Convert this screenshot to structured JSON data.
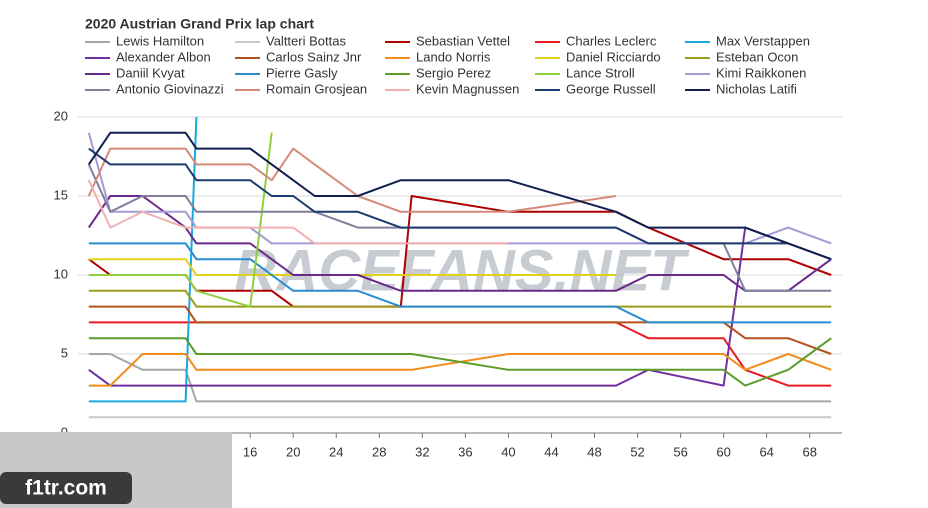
{
  "chart_data": {
    "type": "line",
    "title": "2020 Austrian Grand Prix lap chart",
    "x": [
      1,
      3,
      6,
      10,
      11,
      16,
      18,
      20,
      22,
      26,
      30,
      31,
      40,
      50,
      53,
      60,
      62,
      66,
      70
    ],
    "xlim": [
      0,
      71
    ],
    "xticks": [
      16,
      20,
      24,
      28,
      32,
      36,
      40,
      44,
      48,
      52,
      56,
      60,
      64,
      68
    ],
    "ylim": [
      0,
      20
    ],
    "yticks": [
      0,
      5,
      10,
      15,
      20
    ],
    "grid": true,
    "annotations": [
      "RACEFANS.NET",
      "f1tr.com"
    ],
    "series": [
      {
        "name": "Lewis Hamilton",
        "color": "#a6a6a6",
        "values": [
          5,
          5,
          4,
          4,
          2,
          2,
          2,
          2,
          2,
          2,
          2,
          2,
          2,
          2,
          2,
          2,
          2,
          2,
          2
        ]
      },
      {
        "name": "Valtteri Bottas",
        "color": "#c8c8c8",
        "values": [
          1,
          1,
          1,
          1,
          1,
          1,
          1,
          1,
          1,
          1,
          1,
          1,
          1,
          1,
          1,
          1,
          1,
          1,
          1
        ]
      },
      {
        "name": "Sebastian Vettel",
        "color": "#b00000",
        "values": [
          11,
          10,
          10,
          10,
          9,
          9,
          9,
          8,
          8,
          8,
          8,
          15,
          14,
          14,
          13,
          11,
          11,
          11,
          10
        ]
      },
      {
        "name": "Charles Leclerc",
        "color": "#e8191f",
        "values": [
          7,
          7,
          7,
          7,
          7,
          7,
          7,
          7,
          7,
          7,
          7,
          7,
          7,
          7,
          6,
          6,
          4,
          3,
          3
        ]
      },
      {
        "name": "Max Verstappen",
        "color": "#1aa7dd",
        "values": [
          2,
          2,
          2,
          2,
          20,
          null,
          null,
          null,
          null,
          null,
          null,
          null,
          null,
          null,
          null,
          null,
          null,
          null,
          null
        ]
      },
      {
        "name": "Alexander Albon",
        "color": "#7030a0",
        "values": [
          4,
          3,
          3,
          3,
          3,
          3,
          3,
          3,
          3,
          3,
          3,
          3,
          3,
          3,
          4,
          3,
          13,
          12,
          11
        ]
      },
      {
        "name": "Carlos Sainz Jnr",
        "color": "#b5521b",
        "values": [
          8,
          8,
          8,
          8,
          7,
          7,
          7,
          7,
          7,
          7,
          7,
          7,
          7,
          7,
          7,
          7,
          6,
          6,
          5
        ]
      },
      {
        "name": "Lando Norris",
        "color": "#f28c1c",
        "values": [
          3,
          3,
          5,
          5,
          4,
          4,
          4,
          4,
          4,
          4,
          4,
          4,
          5,
          5,
          5,
          5,
          4,
          5,
          4
        ]
      },
      {
        "name": "Daniel Ricciardo",
        "color": "#e0d21c",
        "values": [
          11,
          11,
          11,
          11,
          10,
          10,
          10,
          10,
          10,
          10,
          10,
          10,
          10,
          10,
          null,
          null,
          null,
          null,
          null
        ]
      },
      {
        "name": "Esteban Ocon",
        "color": "#9c9c1a",
        "values": [
          9,
          9,
          9,
          9,
          8,
          8,
          8,
          8,
          8,
          8,
          8,
          8,
          8,
          8,
          8,
          8,
          8,
          8,
          8
        ]
      },
      {
        "name": "Daniil Kvyat",
        "color": "#6b2a8a",
        "values": [
          13,
          15,
          15,
          13,
          12,
          12,
          11,
          10,
          10,
          10,
          9,
          9,
          9,
          9,
          10,
          10,
          9,
          9,
          11
        ]
      },
      {
        "name": "Pierre Gasly",
        "color": "#2a8bcf",
        "values": [
          12,
          12,
          12,
          12,
          11,
          11,
          10,
          9,
          9,
          9,
          8,
          8,
          8,
          8,
          7,
          7,
          7,
          7,
          7
        ]
      },
      {
        "name": "Sergio Perez",
        "color": "#5a9e2a",
        "values": [
          6,
          6,
          6,
          6,
          5,
          5,
          5,
          5,
          5,
          5,
          5,
          5,
          4,
          4,
          4,
          4,
          3,
          4,
          6
        ]
      },
      {
        "name": "Lance Stroll",
        "color": "#8fcf3c",
        "values": [
          10,
          10,
          10,
          10,
          9,
          8,
          19,
          null,
          null,
          null,
          null,
          null,
          null,
          null,
          null,
          null,
          null,
          null,
          null
        ]
      },
      {
        "name": "Kimi Raikkonen",
        "color": "#a59ad4",
        "values": [
          19,
          14,
          14,
          14,
          13,
          13,
          12,
          12,
          12,
          12,
          12,
          12,
          12,
          12,
          12,
          12,
          12,
          13,
          12
        ]
      },
      {
        "name": "Antonio Giovinazzi",
        "color": "#7f7f9a",
        "values": [
          17,
          14,
          15,
          15,
          14,
          14,
          14,
          14,
          14,
          13,
          13,
          13,
          13,
          13,
          12,
          12,
          9,
          9,
          9
        ]
      },
      {
        "name": "Romain Grosjean",
        "color": "#d48a7a",
        "values": [
          15,
          18,
          18,
          18,
          17,
          17,
          16,
          18,
          17,
          15,
          14,
          14,
          14,
          15,
          null,
          null,
          null,
          null,
          null
        ]
      },
      {
        "name": "Kevin Magnussen",
        "color": "#f2b0b0",
        "values": [
          16,
          13,
          14,
          13,
          13,
          13,
          13,
          13,
          12,
          12,
          12,
          12,
          12,
          null,
          null,
          null,
          null,
          null,
          null
        ]
      },
      {
        "name": "George Russell",
        "color": "#1f3a6e",
        "values": [
          18,
          17,
          17,
          17,
          16,
          16,
          15,
          15,
          14,
          14,
          13,
          13,
          13,
          13,
          12,
          12,
          12,
          12,
          null
        ]
      },
      {
        "name": "Nicholas Latifi",
        "color": "#0f1f4f",
        "values": [
          17,
          19,
          19,
          19,
          18,
          18,
          17,
          16,
          15,
          15,
          16,
          16,
          16,
          14,
          13,
          13,
          13,
          12,
          11
        ]
      }
    ]
  }
}
